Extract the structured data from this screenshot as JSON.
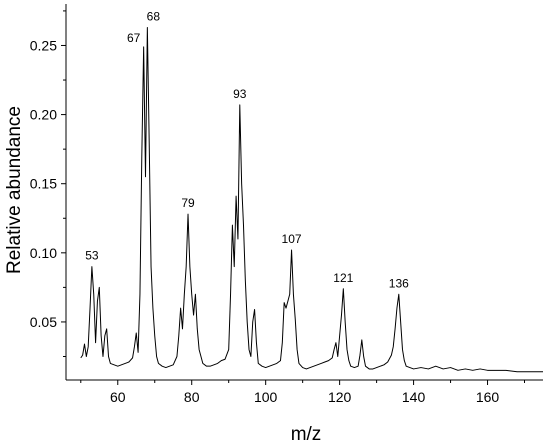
{
  "chart_data": {
    "type": "line",
    "title": "",
    "xlabel": "m/z",
    "ylabel": "Relative abundance",
    "xlim": [
      46,
      175
    ],
    "ylim": [
      0.008,
      0.28
    ],
    "xticks": [
      60,
      80,
      100,
      120,
      140,
      160
    ],
    "yticks": [
      0.05,
      0.1,
      0.15,
      0.2,
      0.25
    ],
    "xtick_labels": [
      "60",
      "80",
      "100",
      "120",
      "140",
      "160"
    ],
    "ytick_labels": [
      "0.05",
      "0.10",
      "0.15",
      "0.20",
      "0.25"
    ],
    "grid": false,
    "series": [
      {
        "points": [
          [
            50,
            0.024
          ],
          [
            50.5,
            0.026
          ],
          [
            51,
            0.034
          ],
          [
            51.5,
            0.025
          ],
          [
            52,
            0.032
          ],
          [
            52.5,
            0.06
          ],
          [
            53,
            0.09
          ],
          [
            53.5,
            0.07
          ],
          [
            54,
            0.035
          ],
          [
            54.5,
            0.065
          ],
          [
            55,
            0.075
          ],
          [
            55.5,
            0.04
          ],
          [
            56,
            0.025
          ],
          [
            56.5,
            0.04
          ],
          [
            57,
            0.045
          ],
          [
            57.5,
            0.025
          ],
          [
            58,
            0.02
          ],
          [
            59,
            0.019
          ],
          [
            60,
            0.018
          ],
          [
            61,
            0.019
          ],
          [
            62,
            0.02
          ],
          [
            63,
            0.021
          ],
          [
            64,
            0.024
          ],
          [
            64.5,
            0.032
          ],
          [
            65,
            0.042
          ],
          [
            65.5,
            0.028
          ],
          [
            66,
            0.07
          ],
          [
            66.5,
            0.17
          ],
          [
            67,
            0.249
          ],
          [
            67.5,
            0.155
          ],
          [
            68,
            0.263
          ],
          [
            68.5,
            0.18
          ],
          [
            69,
            0.09
          ],
          [
            69.5,
            0.06
          ],
          [
            70,
            0.04
          ],
          [
            70.5,
            0.025
          ],
          [
            71,
            0.02
          ],
          [
            72,
            0.018
          ],
          [
            73,
            0.017
          ],
          [
            74,
            0.018
          ],
          [
            75,
            0.019
          ],
          [
            76,
            0.025
          ],
          [
            76.5,
            0.04
          ],
          [
            77,
            0.06
          ],
          [
            77.5,
            0.045
          ],
          [
            78,
            0.07
          ],
          [
            78.5,
            0.09
          ],
          [
            79,
            0.128
          ],
          [
            79.5,
            0.09
          ],
          [
            80,
            0.07
          ],
          [
            80.5,
            0.055
          ],
          [
            81,
            0.07
          ],
          [
            81.5,
            0.045
          ],
          [
            82,
            0.03
          ],
          [
            82.5,
            0.025
          ],
          [
            83,
            0.02
          ],
          [
            84,
            0.018
          ],
          [
            85,
            0.018
          ],
          [
            86,
            0.019
          ],
          [
            87,
            0.02
          ],
          [
            88,
            0.022
          ],
          [
            89,
            0.023
          ],
          [
            90,
            0.03
          ],
          [
            90.5,
            0.07
          ],
          [
            91,
            0.12
          ],
          [
            91.5,
            0.09
          ],
          [
            92,
            0.141
          ],
          [
            92.5,
            0.11
          ],
          [
            93,
            0.207
          ],
          [
            93.5,
            0.15
          ],
          [
            94,
            0.12
          ],
          [
            94.5,
            0.08
          ],
          [
            95,
            0.05
          ],
          [
            95.5,
            0.03
          ],
          [
            96,
            0.025
          ],
          [
            96.5,
            0.05
          ],
          [
            97,
            0.059
          ],
          [
            97.5,
            0.035
          ],
          [
            98,
            0.02
          ],
          [
            99,
            0.018
          ],
          [
            100,
            0.017
          ],
          [
            101,
            0.018
          ],
          [
            102,
            0.019
          ],
          [
            103,
            0.02
          ],
          [
            104,
            0.022
          ],
          [
            104.5,
            0.035
          ],
          [
            105,
            0.064
          ],
          [
            105.5,
            0.06
          ],
          [
            106,
            0.065
          ],
          [
            106.5,
            0.07
          ],
          [
            107,
            0.102
          ],
          [
            107.5,
            0.07
          ],
          [
            108,
            0.052
          ],
          [
            108.5,
            0.03
          ],
          [
            109,
            0.02
          ],
          [
            110,
            0.017
          ],
          [
            111,
            0.016
          ],
          [
            112,
            0.017
          ],
          [
            113,
            0.018
          ],
          [
            114,
            0.019
          ],
          [
            115,
            0.02
          ],
          [
            116,
            0.021
          ],
          [
            117,
            0.022
          ],
          [
            118,
            0.024
          ],
          [
            118.5,
            0.03
          ],
          [
            119,
            0.035
          ],
          [
            119.5,
            0.025
          ],
          [
            120,
            0.04
          ],
          [
            120.5,
            0.055
          ],
          [
            121,
            0.074
          ],
          [
            121.5,
            0.05
          ],
          [
            122,
            0.03
          ],
          [
            122.5,
            0.022
          ],
          [
            123,
            0.018
          ],
          [
            124,
            0.017
          ],
          [
            125,
            0.018
          ],
          [
            125.5,
            0.026
          ],
          [
            126,
            0.037
          ],
          [
            126.5,
            0.025
          ],
          [
            127,
            0.018
          ],
          [
            128,
            0.016
          ],
          [
            129,
            0.016
          ],
          [
            130,
            0.017
          ],
          [
            131,
            0.018
          ],
          [
            132,
            0.019
          ],
          [
            133,
            0.021
          ],
          [
            134,
            0.026
          ],
          [
            134.5,
            0.032
          ],
          [
            135,
            0.045
          ],
          [
            135.5,
            0.06
          ],
          [
            136,
            0.07
          ],
          [
            136.5,
            0.05
          ],
          [
            137,
            0.03
          ],
          [
            137.5,
            0.022
          ],
          [
            138,
            0.018
          ],
          [
            139,
            0.017
          ],
          [
            140,
            0.016
          ],
          [
            142,
            0.017
          ],
          [
            144,
            0.016
          ],
          [
            146,
            0.018
          ],
          [
            148,
            0.016
          ],
          [
            150,
            0.017
          ],
          [
            152,
            0.015
          ],
          [
            154,
            0.016
          ],
          [
            156,
            0.015
          ],
          [
            158,
            0.016
          ],
          [
            160,
            0.015
          ],
          [
            162,
            0.015
          ],
          [
            165,
            0.015
          ],
          [
            168,
            0.014
          ],
          [
            171,
            0.014
          ],
          [
            175,
            0.014
          ]
        ]
      }
    ],
    "annotations": [
      {
        "text": "53",
        "x": 53,
        "y": 0.09
      },
      {
        "text": "67",
        "x": 67,
        "y": 0.249
      },
      {
        "text": "68",
        "x": 68,
        "y": 0.263
      },
      {
        "text": "79",
        "x": 79,
        "y": 0.128
      },
      {
        "text": "93",
        "x": 93,
        "y": 0.207
      },
      {
        "text": "107",
        "x": 107,
        "y": 0.102
      },
      {
        "text": "121",
        "x": 121,
        "y": 0.074
      },
      {
        "text": "136",
        "x": 136,
        "y": 0.07
      }
    ]
  }
}
